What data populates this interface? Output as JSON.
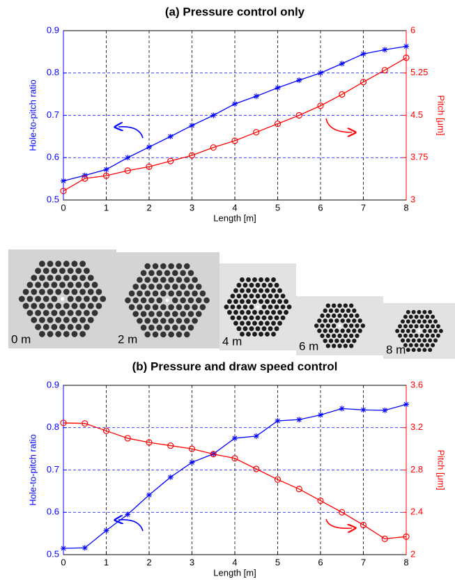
{
  "chart_data": [
    {
      "type": "line",
      "title": "(a) Pressure control only",
      "xlabel": "Length [m]",
      "ylabel": "Hole-to-pitch ratio",
      "y2label": "Pitch [μm]",
      "x": [
        0,
        0.5,
        1,
        1.5,
        2,
        2.5,
        3,
        3.5,
        4,
        4.5,
        5,
        5.5,
        6,
        6.5,
        7,
        7.5,
        8
      ],
      "xlim": [
        0,
        8
      ],
      "xticks": [
        0,
        1,
        2,
        3,
        4,
        5,
        6,
        7,
        8
      ],
      "ylim": [
        0.5,
        0.9
      ],
      "yticks": [
        0.5,
        0.6,
        0.7,
        0.8,
        0.9
      ],
      "y2lim": [
        3,
        6
      ],
      "y2ticks": [
        3,
        3.75,
        4.5,
        5.25,
        6
      ],
      "grid": true,
      "series": [
        {
          "name": "Hole-to-pitch ratio",
          "color": "#0000ff",
          "marker": "asterisk",
          "axis": "y",
          "values": [
            0.545,
            0.558,
            0.572,
            0.6,
            0.625,
            0.65,
            0.676,
            0.7,
            0.727,
            0.745,
            0.765,
            0.783,
            0.8,
            0.822,
            0.845,
            0.855,
            0.863
          ]
        },
        {
          "name": "Pitch",
          "color": "#ff0000",
          "marker": "circle",
          "axis": "y2",
          "values": [
            3.16,
            3.38,
            3.43,
            3.52,
            3.59,
            3.69,
            3.79,
            3.93,
            4.05,
            4.2,
            4.35,
            4.5,
            4.67,
            4.87,
            5.09,
            5.3,
            5.52
          ]
        }
      ]
    },
    {
      "type": "line",
      "title": "(b) Pressure and draw speed control",
      "xlabel": "Length [m]",
      "ylabel": "Hole-to-pitch ratio",
      "y2label": "Pitch [μm]",
      "x": [
        0,
        0.5,
        1,
        1.5,
        2,
        2.5,
        3,
        3.5,
        4,
        4.5,
        5,
        5.5,
        6,
        6.5,
        7,
        7.5,
        8
      ],
      "xlim": [
        0,
        8
      ],
      "xticks": [
        0,
        1,
        2,
        3,
        4,
        5,
        6,
        7,
        8
      ],
      "ylim": [
        0.5,
        0.9
      ],
      "yticks": [
        0.5,
        0.6,
        0.7,
        0.8,
        0.9
      ],
      "y2lim": [
        2,
        3.6
      ],
      "y2ticks": [
        2,
        2.4,
        2.8,
        3.2,
        3.6
      ],
      "grid": true,
      "series": [
        {
          "name": "Hole-to-pitch ratio",
          "color": "#0000ff",
          "marker": "asterisk",
          "axis": "y",
          "values": [
            0.515,
            0.516,
            0.557,
            0.595,
            0.641,
            0.683,
            0.718,
            0.738,
            0.775,
            0.78,
            0.816,
            0.819,
            0.83,
            0.845,
            0.842,
            0.841,
            0.855
          ]
        },
        {
          "name": "Pitch",
          "color": "#ff0000",
          "marker": "circle",
          "axis": "y2",
          "values": [
            3.245,
            3.24,
            3.17,
            3.1,
            3.06,
            3.03,
            3.0,
            2.95,
            2.91,
            2.81,
            2.71,
            2.62,
            2.51,
            2.4,
            2.28,
            2.15,
            2.17
          ]
        }
      ]
    }
  ],
  "micrographs": [
    "0 m",
    "2 m",
    "4 m",
    "6 m",
    "8 m"
  ]
}
